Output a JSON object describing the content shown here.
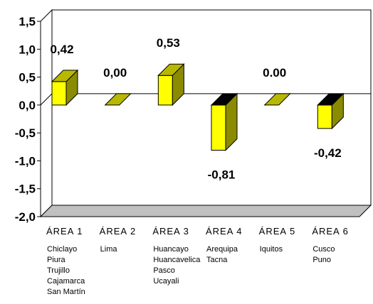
{
  "chart_data": {
    "type": "bar",
    "title": "",
    "xlabel": "",
    "ylabel": "",
    "ylim": [
      -2.0,
      1.5
    ],
    "y_ticks": [
      "1,5",
      "1,0",
      "0,5",
      "0,0",
      "-0,5",
      "-1,0",
      "-1,5",
      "-2,0"
    ],
    "y_tick_values": [
      1.5,
      1.0,
      0.5,
      0.0,
      -0.5,
      -1.0,
      -1.5,
      -2.0
    ],
    "categories": [
      "ÁREA 1",
      "ÁREA 2",
      "ÁREA 3",
      "ÁREA 4",
      "ÁREA 5",
      "ÁREA 6"
    ],
    "values": [
      0.42,
      0.0,
      0.53,
      -0.81,
      0.0,
      -0.42
    ],
    "data_labels": [
      "0,42",
      "0,00",
      "0,53",
      "-0,81",
      "0.00",
      "-0,42"
    ],
    "category_cities": [
      [
        "Chiclayo",
        "Piura",
        "Trujillo",
        "Cajamarca",
        "San Martín"
      ],
      [
        "Lima"
      ],
      [
        "Huancayo",
        "Huancavelica",
        "Pasco",
        "Ucayali"
      ],
      [
        "Arequipa",
        "Tacna"
      ],
      [
        "Iquitos"
      ],
      [
        "Cusco",
        "Puno"
      ]
    ],
    "grid": false,
    "legend": "none",
    "style": "3d-column",
    "colors": {
      "bar_front": "#ffff00",
      "bar_side": "#8b8b00",
      "bar_top_positive": "#b8b800",
      "bar_top_negative": "#000000",
      "floor": "#c0c0c0"
    }
  }
}
